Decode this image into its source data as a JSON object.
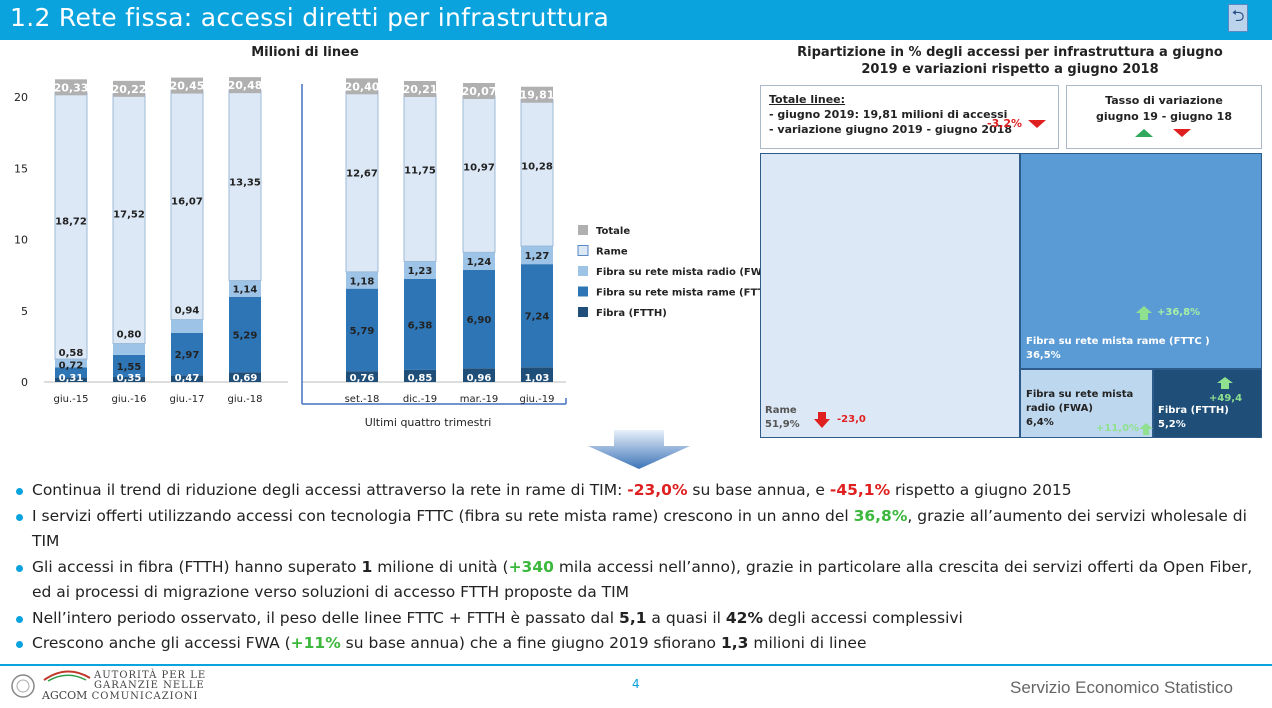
{
  "header": {
    "title": "1.2 Rete fissa: accessi diretti per infrastruttura"
  },
  "colors": {
    "totale": "#b0b0b0",
    "rame": "#dce8f5",
    "fwa": "#9dc3e6",
    "fttc": "#2e75b6",
    "ftth": "#1f4e79",
    "accent": "#0aa3de"
  },
  "chart_data": [
    {
      "type": "bar",
      "stacked": true,
      "title": "Milioni di linee",
      "yticks": [
        0,
        5,
        10,
        15,
        20
      ],
      "ylim": [
        0,
        21.5
      ],
      "categories": [
        "giu.-15",
        "giu.-16",
        "giu.-17",
        "giu.-18",
        "set.-18",
        "dic.-19",
        "mar.-19",
        "giu.-19"
      ],
      "group_label": "Ultimi quattro trimestri",
      "series": [
        {
          "name": "Fibra (FTTH)",
          "values": [
            0.31,
            0.35,
            0.47,
            0.69,
            0.76,
            0.85,
            0.96,
            1.03
          ],
          "labels": [
            "0,31",
            "0,35",
            "0,47",
            "0,69",
            "0,76",
            "0,85",
            "0,96",
            "1,03"
          ]
        },
        {
          "name": "Fibra su rete mista rame (FTTC)",
          "values": [
            0.72,
            1.55,
            2.97,
            5.29,
            5.79,
            6.38,
            6.9,
            7.24
          ],
          "labels": [
            "0,72",
            "1,55",
            "2,97",
            "5,29",
            "5,79",
            "6,38",
            "6,90",
            "7,24"
          ]
        },
        {
          "name": "Fibra su rete mista radio (FWA)",
          "values": [
            0.58,
            0.8,
            0.94,
            1.14,
            1.18,
            1.23,
            1.24,
            1.27
          ],
          "labels": [
            "0,58",
            "0,80",
            "0,94",
            "1,14",
            "1,18",
            "1,23",
            "1,24",
            "1,27"
          ]
        },
        {
          "name": "Rame",
          "values": [
            18.72,
            17.52,
            16.07,
            13.35,
            12.67,
            11.75,
            10.97,
            10.28
          ],
          "labels": [
            "18,72",
            "17,52",
            "16,07",
            "13,35",
            "12,67",
            "11,75",
            "10,97",
            "10,28"
          ]
        }
      ],
      "totals": [
        20.33,
        20.22,
        20.45,
        20.48,
        20.4,
        20.21,
        20.07,
        19.81
      ],
      "total_labels": [
        "20,33",
        "20,22",
        "20,45",
        "20,48",
        "20,40",
        "20,21",
        "20,07",
        "19,81"
      ],
      "legend": [
        "Totale",
        "Rame",
        "Fibra su rete mista radio (FWA)",
        "Fibra su rete mista rame (FTTC)",
        "Fibra (FTTH)"
      ],
      "legend_position": "right"
    },
    {
      "type": "treemap",
      "title": "Ripartizione in % degli accessi per infrastruttura a giugno 2019 e variazioni rispetto a giugno 2018",
      "items": [
        {
          "name": "Rame",
          "share": 51.9,
          "share_label": "51,9%",
          "change": -23.0,
          "change_label": "-23,0"
        },
        {
          "name": "Fibra su rete mista rame (FTTC )",
          "share": 36.5,
          "share_label": "36,5%",
          "change": 36.8,
          "change_label": "+36,8%"
        },
        {
          "name": "Fibra su rete mista radio (FWA)",
          "share": 6.4,
          "share_label": "6,4%",
          "change": 11.0,
          "change_label": "+11,0%"
        },
        {
          "name": "Fibra (FTTH)",
          "share": 5.2,
          "share_label": "5,2%",
          "change": 49.4,
          "change_label": "+49,4"
        }
      ]
    }
  ],
  "chart1": {
    "title": "Milioni di linee"
  },
  "chart2": {
    "title_line1": "Ripartizione in % degli accessi per infrastruttura a giugno",
    "title_line2": "2019 e variazioni rispetto a giugno 2018"
  },
  "totals_box": {
    "heading": "Totale linee:",
    "line1": "- giugno 2019: 19,81 milioni di accessi",
    "line2": "- variazione giugno 2019 - giugno 2018",
    "change": "-3,2%"
  },
  "rate_box": {
    "line1": "Tasso di variazione",
    "line2": "giugno 19 - giugno 18"
  },
  "bullets": {
    "b1": {
      "p1": "Continua il trend di riduzione degli accessi attraverso la rete in rame di TIM: ",
      "v1": "-23,0%",
      "p2": " su base annua, e ",
      "v2": "-45,1%",
      "p3": " rispetto a giugno 2015"
    },
    "b2": {
      "p1": "I servizi offerti utilizzando accessi con tecnologia FTTC (fibra su rete mista rame) crescono in un anno del ",
      "v1": "36,8%",
      "p2": ", grazie all’aumento dei servizi wholesale di TIM"
    },
    "b3": {
      "p1": "Gli accessi in fibra (FTTH) hanno superato ",
      "v1": "1",
      "p2": " milione di unità (",
      "v2": "+340",
      "p3": " mila accessi nell’anno), grazie in particolare alla crescita dei servizi offerti da Open Fiber, ed ai processi di migrazione verso soluzioni di accesso FTTH proposte da TIM"
    },
    "b4": {
      "p1": "Nell’intero periodo osservato, il peso delle linee FTTC + FTTH è passato dal ",
      "v1": "5,1",
      "p2": " a quasi il ",
      "v2": "42%",
      "p3": " degli accessi complessivi"
    },
    "b5": {
      "p1": "Crescono anche gli accessi FWA (",
      "v1": "+11%",
      "p2": " su base annua) che a fine giugno 2019 sfiorano ",
      "v2": "1,3",
      "p3": " milioni di linee"
    }
  },
  "footer": {
    "page": "4",
    "service": "Servizio Economico Statistico",
    "logo_line1": "AUTORITÀ PER LE",
    "logo_line2": "GARANZIE NELLE",
    "logo_line3": "COMUNICAZIONI",
    "logo_acronym": "AGCOM"
  }
}
